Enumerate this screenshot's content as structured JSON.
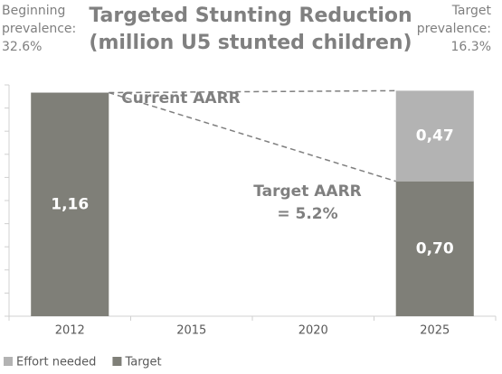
{
  "chart_data": {
    "type": "bar",
    "stacked": true,
    "title": [
      "Targeted Stunting Reduction",
      "(million U5 stunted children)"
    ],
    "left_note": [
      "Beginning",
      "prevalence:",
      "32.6%"
    ],
    "right_note": [
      "Target",
      "prevalence:",
      "16.3%"
    ],
    "annotations": [
      {
        "text": [
          "Current AARR"
        ]
      },
      {
        "text": [
          "Target AARR",
          "= 5.2%"
        ]
      }
    ],
    "categories": [
      "2012",
      "2015",
      "2020",
      "2025"
    ],
    "series": [
      {
        "name": "Effort needed",
        "color": "#b3b3b3",
        "values": [
          null,
          null,
          null,
          0.47
        ],
        "value_labels": [
          null,
          null,
          null,
          "0,47"
        ]
      },
      {
        "name": "Target",
        "color": "#7f7f78",
        "values": [
          1.16,
          null,
          null,
          0.7
        ],
        "value_labels": [
          "1,16",
          null,
          null,
          "0,70"
        ]
      }
    ],
    "ylim": [
      0,
      1.2
    ],
    "yticks": [
      0,
      0.12,
      0.24,
      0.36,
      0.48,
      0.6,
      0.72,
      0.84,
      0.96,
      1.08,
      1.2
    ],
    "legend": "bottom-left"
  }
}
